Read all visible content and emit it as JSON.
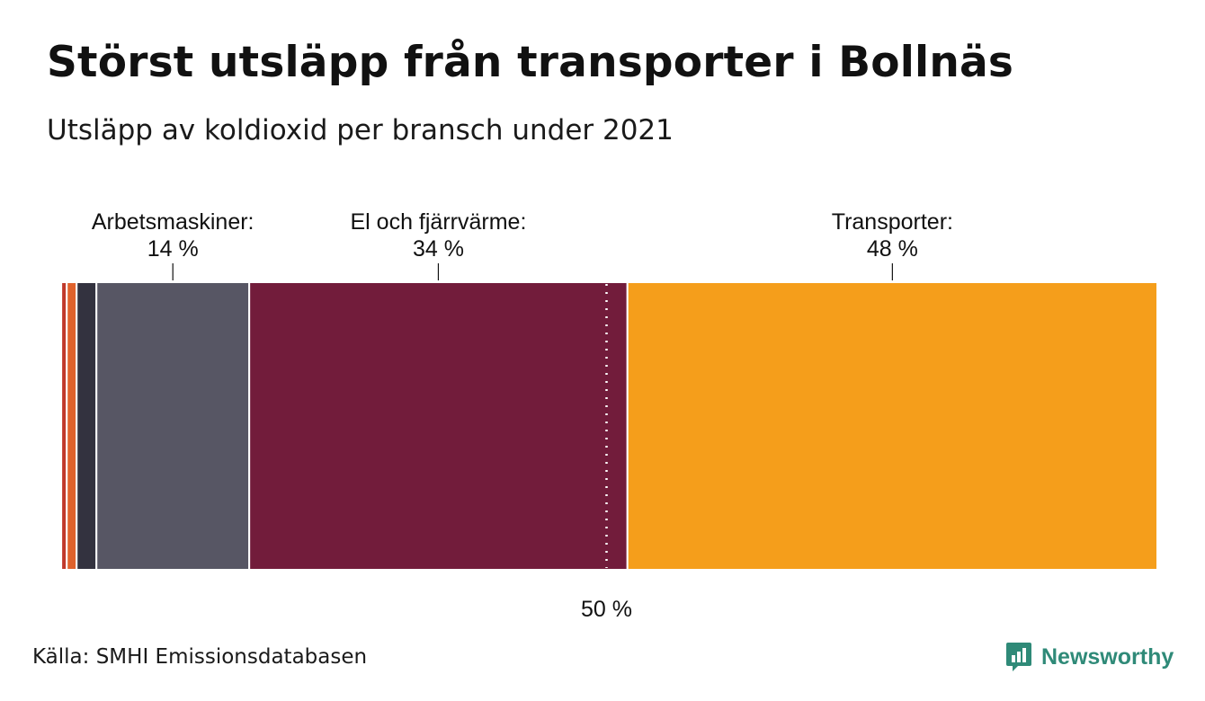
{
  "title": "Störst utsläpp från transporter i Bollnäs",
  "subtitle": "Utsläpp av koldioxid per bransch under 2021",
  "source": "Källa: SMHI Emissionsdatabasen",
  "brand": {
    "name": "Newsworthy",
    "color": "#2f8a78",
    "icon": "newsworthy-logo-icon"
  },
  "chart_data": {
    "type": "bar",
    "orientation": "horizontal-stacked-100",
    "title": "Störst utsläpp från transporter i Bollnäs",
    "subtitle": "Utsläpp av koldioxid per bransch under 2021",
    "unit": "%",
    "segments": [
      {
        "name": "",
        "value": 0.5,
        "color": "#ffffff",
        "label": "",
        "value_label": ""
      },
      {
        "name": "",
        "value": 0.5,
        "color": "#c0392b",
        "label": "",
        "value_label": ""
      },
      {
        "name": "",
        "value": 0.9,
        "color": "#e0622c",
        "label": "",
        "value_label": ""
      },
      {
        "name": "",
        "value": 1.8,
        "color": "#33323f",
        "label": "",
        "value_label": ""
      },
      {
        "name": "Arbetsmaskiner",
        "value": 13.9,
        "color": "#575664",
        "label": "Arbetsmaskiner:",
        "value_label": "14 %"
      },
      {
        "name": "El och fjärrvärme",
        "value": 34.4,
        "color": "#721c3b",
        "label": "El och fjärrvärme:",
        "value_label": "34 %"
      },
      {
        "name": "Transporter",
        "value": 48.2,
        "color": "#f59e1b",
        "label": "Transporter:",
        "value_label": "48 %"
      }
    ],
    "reference_line": {
      "value": 50,
      "label": "50 %",
      "style": "dotted",
      "color": "#ffffff"
    }
  }
}
